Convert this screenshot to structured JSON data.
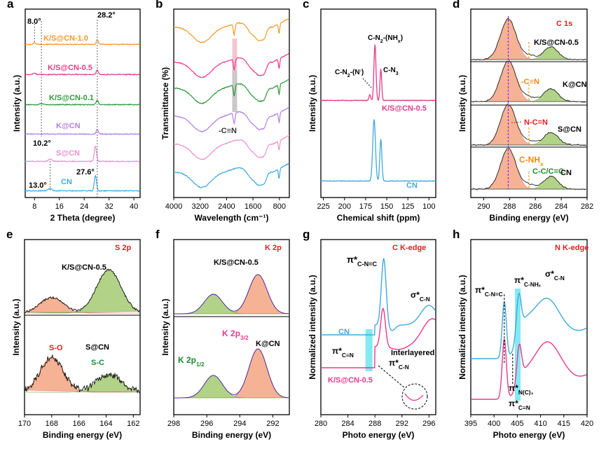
{
  "colors": {
    "orange": "#f39a2a",
    "pink": "#e8398c",
    "green": "#2f9a3b",
    "purple": "#b37fe0",
    "lpink": "#ef8fcf",
    "cyan": "#3fa9df",
    "red": "#e02020",
    "dgreen": "#1e8a2e",
    "orangeText": "#f08a10"
  },
  "panels": {
    "a": {
      "letter": "a",
      "xlabel": "2 Theta (degree)",
      "ylabel": "Intensity (a.u.)",
      "xticks": [
        "8",
        "16",
        "24",
        "32",
        "40"
      ],
      "series": [
        "K/S@CN-1.0",
        "K/S@CN-0.5",
        "K/S@CN-0.1",
        "K@CN",
        "S@CN",
        "CN"
      ],
      "ann": {
        "p8": "8.0°",
        "p282": "28.2°",
        "p102": "10.2°",
        "p276": "27.6°",
        "p13": "13.0°"
      }
    },
    "b": {
      "letter": "b",
      "xlabel": "Wavelength (cm⁻¹)",
      "ylabel": "Transmittance (%)",
      "xticks": [
        "4000",
        "3200",
        "2400",
        "1600",
        "800"
      ],
      "ann": "-C≡N"
    },
    "c": {
      "letter": "c",
      "xlabel": "Chemical shift (ppm)",
      "ylabel": "Intensity (a.u.)",
      "xticks": [
        "225",
        "200",
        "175",
        "150",
        "125",
        "100"
      ],
      "series": [
        "K/S@CN-0.5",
        "CN"
      ],
      "ann": {
        "c1": "C-N₂-(NHₓ)",
        "c2": "C-N₂-(N⁻)",
        "c3": "C-N₃"
      }
    },
    "d": {
      "letter": "d",
      "title": "C 1s",
      "xlabel": "Binding energy (eV)",
      "ylabel": "Intensity (a.u.)",
      "xticks": [
        "290",
        "288",
        "286",
        "284",
        "282"
      ],
      "series": [
        "K/S@CN-0.5",
        "K@CN",
        "S@CN",
        "CN"
      ],
      "ann": {
        "cn": "-C≡N",
        "ncn": "N-C=N",
        "cnh": "C-NHₓ",
        "cc": "C-C/C=C"
      }
    },
    "e": {
      "letter": "e",
      "title": "S 2p",
      "xlabel": "Binding energy (eV)",
      "ylabel": "Intensity (a.u.)",
      "xticks": [
        "170",
        "168",
        "166",
        "164",
        "162"
      ],
      "series": [
        "K/S@CN-0.5",
        "S@CN"
      ],
      "ann": {
        "so": "S-O",
        "sc": "S-C"
      }
    },
    "f": {
      "letter": "f",
      "title": "K 2p",
      "xlabel": "Binding energy (eV)",
      "ylabel": "Intensity (a.u.)",
      "xticks": [
        "298",
        "296",
        "294",
        "292"
      ],
      "series": [
        "K/S@CN-0.5",
        "K@CN"
      ],
      "ann": {
        "k32": "K 2p3/2",
        "k12": "K 2p1/2"
      }
    },
    "g": {
      "letter": "g",
      "title": "C K-edge",
      "xlabel": "Photo energy (eV)",
      "ylabel": "Normalized intensity (a.u.)",
      "xticks": [
        "280",
        "284",
        "288",
        "292",
        "296"
      ],
      "series": [
        "CN",
        "K/S@CN-0.5"
      ],
      "ann": {
        "pcnc": "π*C-N=C",
        "pcn": "π*C≡N",
        "pcn2": "π*C-N",
        "sig": "σ*C-N",
        "inter": "Interlayered"
      }
    },
    "h": {
      "letter": "h",
      "title": "N K-edge",
      "xlabel": "Photo energy (eV)",
      "ylabel": "Normalized intensity (a.u.)",
      "xticks": [
        "395",
        "400",
        "405",
        "410",
        "415",
        "420"
      ],
      "ann": {
        "pcnc": "π*C-N=C",
        "pcnh": "π*C-NHₓ",
        "sig": "σ*C-N",
        "pnc3": "π*N(C)₃",
        "pcn": "π*C≡N"
      }
    }
  },
  "chart_data": [
    {
      "type": "line",
      "panel": "a",
      "title": "",
      "xlabel": "2 Theta (degree)",
      "ylabel": "Intensity (a.u.)",
      "xlim": [
        5,
        42
      ],
      "series": [
        {
          "name": "K/S@CN-1.0",
          "peaks": [
            8.0,
            28.2
          ]
        },
        {
          "name": "K/S@CN-0.5",
          "peaks": [
            8.0,
            28.2
          ]
        },
        {
          "name": "K/S@CN-0.1",
          "peaks": [
            10.2,
            28.2
          ]
        },
        {
          "name": "K@CN",
          "peaks": [
            28.2
          ]
        },
        {
          "name": "S@CN",
          "peaks": [
            13.0,
            27.6
          ]
        },
        {
          "name": "CN",
          "peaks": [
            13.0,
            27.6
          ]
        }
      ]
    },
    {
      "type": "line",
      "panel": "b",
      "xlabel": "Wavelength (cm-1)",
      "ylabel": "Transmittance (%)",
      "xlim": [
        4000,
        500
      ],
      "annotation": "-C≡N ~2170 cm-1"
    },
    {
      "type": "line",
      "panel": "c",
      "xlabel": "Chemical shift (ppm)",
      "ylabel": "Intensity (a.u.)",
      "xlim": [
        228,
        92
      ],
      "series": [
        {
          "name": "K/S@CN-0.5",
          "peaks": [
            164,
            157,
            170
          ]
        },
        {
          "name": "CN",
          "peaks": [
            165,
            157
          ]
        }
      ]
    },
    {
      "type": "line",
      "panel": "d",
      "title": "C 1s",
      "xlim": [
        291,
        282
      ],
      "peaks": [
        288.1,
        286.5,
        284.8
      ]
    },
    {
      "type": "line",
      "panel": "e",
      "title": "S 2p",
      "xlim": [
        170,
        161.5
      ],
      "peaks": [
        168.0,
        163.8
      ]
    },
    {
      "type": "line",
      "panel": "f",
      "title": "K 2p",
      "xlim": [
        298,
        291
      ],
      "peaks": [
        295.6,
        292.9
      ]
    },
    {
      "type": "line",
      "panel": "g",
      "title": "C K-edge",
      "xlim": [
        280,
        297
      ],
      "peaks": [
        287.5,
        289.3,
        296
      ]
    },
    {
      "type": "line",
      "panel": "h",
      "title": "N K-edge",
      "xlim": [
        395,
        420
      ],
      "peaks": [
        402.2,
        405.3,
        411.5
      ]
    }
  ]
}
